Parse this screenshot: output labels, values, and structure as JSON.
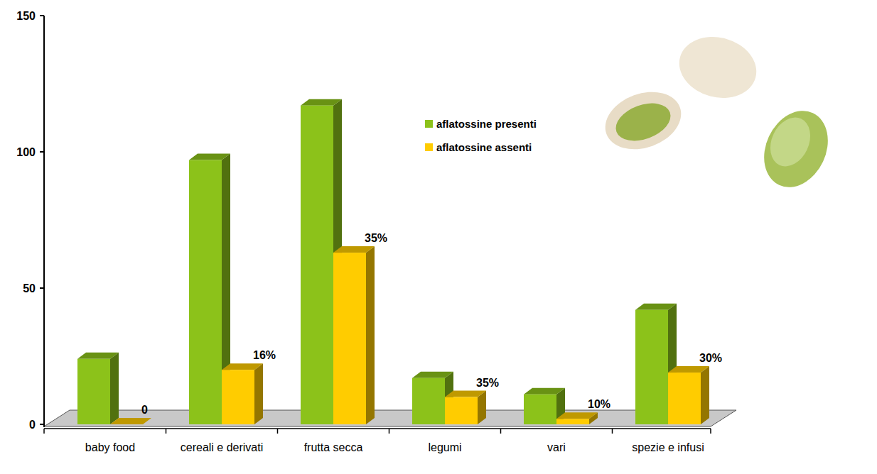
{
  "chart_data": {
    "type": "bar",
    "categories": [
      "baby food",
      "cereali e derivati",
      "frutta secca",
      "legumi",
      "vari",
      "spezie e infusi"
    ],
    "series": [
      {
        "name": "aflatossine presenti",
        "color": "#8cc21a",
        "values": [
          24,
          97,
          117,
          17,
          11,
          42
        ]
      },
      {
        "name": "aflatossine assenti",
        "color": "#ffcc00",
        "values": [
          0,
          20,
          63,
          10,
          2,
          19
        ]
      }
    ],
    "annotations": [
      "0",
      "16%",
      "35%",
      "35%",
      "10%",
      "30%"
    ],
    "ylim": [
      0,
      150
    ],
    "yticks": [
      0,
      50,
      100,
      150
    ],
    "grid": false,
    "legend": "right"
  }
}
